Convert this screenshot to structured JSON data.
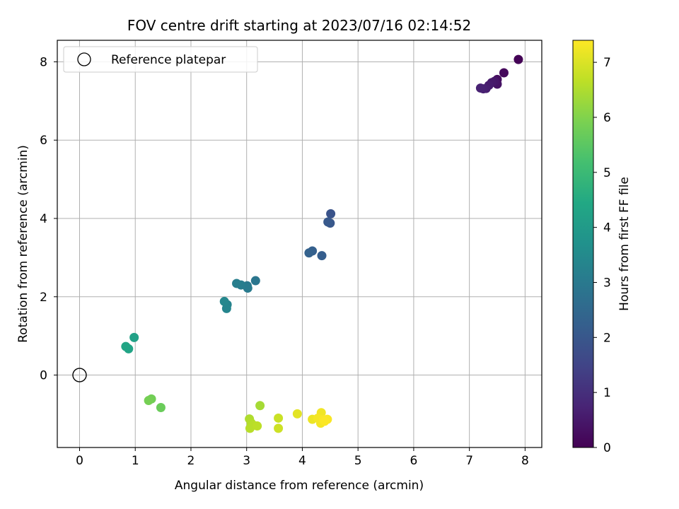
{
  "chart_data": {
    "type": "scatter",
    "title": "FOV centre drift starting at 2023/07/16 02:14:52",
    "xlabel": "Angular distance from reference (arcmin)",
    "ylabel": "Rotation from reference (arcmin)",
    "xlim": [
      -0.4,
      8.3
    ],
    "ylim": [
      -1.85,
      8.55
    ],
    "xticks": [
      0,
      1,
      2,
      3,
      4,
      5,
      6,
      7,
      8
    ],
    "yticks": [
      0,
      2,
      4,
      6,
      8
    ],
    "grid": true,
    "legend": {
      "position": "top-left",
      "entries": [
        "Reference platepar"
      ]
    },
    "reference_point": {
      "name": "Reference platepar",
      "x": 0,
      "y": 0
    },
    "colorbar": {
      "label": "Hours from first FF file",
      "range": [
        0,
        7.4
      ],
      "ticks": [
        0,
        1,
        2,
        3,
        4,
        5,
        6,
        7
      ],
      "colormap": "viridis"
    },
    "points": [
      {
        "x": 7.88,
        "y": 8.06,
        "c": 0.05
      },
      {
        "x": 7.62,
        "y": 7.72,
        "c": 0.15
      },
      {
        "x": 7.5,
        "y": 7.55,
        "c": 0.25
      },
      {
        "x": 7.5,
        "y": 7.43,
        "c": 0.35
      },
      {
        "x": 7.45,
        "y": 7.5,
        "c": 0.45
      },
      {
        "x": 7.4,
        "y": 7.47,
        "c": 0.5
      },
      {
        "x": 7.35,
        "y": 7.4,
        "c": 0.55
      },
      {
        "x": 7.3,
        "y": 7.32,
        "c": 0.6
      },
      {
        "x": 7.25,
        "y": 7.31,
        "c": 0.65
      },
      {
        "x": 7.2,
        "y": 7.33,
        "c": 0.7
      },
      {
        "x": 4.51,
        "y": 4.12,
        "c": 1.9
      },
      {
        "x": 4.5,
        "y": 3.88,
        "c": 2.0
      },
      {
        "x": 4.46,
        "y": 3.91,
        "c": 2.05
      },
      {
        "x": 4.35,
        "y": 3.05,
        "c": 2.2
      },
      {
        "x": 4.18,
        "y": 3.17,
        "c": 2.25
      },
      {
        "x": 4.12,
        "y": 3.12,
        "c": 2.3
      },
      {
        "x": 3.16,
        "y": 2.41,
        "c": 2.9
      },
      {
        "x": 3.01,
        "y": 2.28,
        "c": 3.0
      },
      {
        "x": 3.02,
        "y": 2.22,
        "c": 3.05
      },
      {
        "x": 2.9,
        "y": 2.3,
        "c": 3.1
      },
      {
        "x": 2.82,
        "y": 2.34,
        "c": 3.15
      },
      {
        "x": 2.65,
        "y": 1.8,
        "c": 3.3
      },
      {
        "x": 2.64,
        "y": 1.7,
        "c": 3.35
      },
      {
        "x": 2.6,
        "y": 1.88,
        "c": 3.4
      },
      {
        "x": 0.98,
        "y": 0.96,
        "c": 4.2
      },
      {
        "x": 0.88,
        "y": 0.67,
        "c": 4.3
      },
      {
        "x": 0.83,
        "y": 0.73,
        "c": 4.35
      },
      {
        "x": 1.46,
        "y": -0.83,
        "c": 5.7
      },
      {
        "x": 1.29,
        "y": -0.61,
        "c": 5.8
      },
      {
        "x": 1.24,
        "y": -0.65,
        "c": 5.85
      },
      {
        "x": 3.24,
        "y": -0.78,
        "c": 6.4
      },
      {
        "x": 3.05,
        "y": -1.12,
        "c": 6.5
      },
      {
        "x": 3.08,
        "y": -1.22,
        "c": 6.55
      },
      {
        "x": 3.12,
        "y": -1.28,
        "c": 6.6
      },
      {
        "x": 3.06,
        "y": -1.36,
        "c": 6.6
      },
      {
        "x": 3.19,
        "y": -1.3,
        "c": 6.65
      },
      {
        "x": 3.57,
        "y": -1.1,
        "c": 6.8
      },
      {
        "x": 3.57,
        "y": -1.36,
        "c": 6.85
      },
      {
        "x": 3.91,
        "y": -0.99,
        "c": 7.1
      },
      {
        "x": 4.34,
        "y": -0.96,
        "c": 7.25
      },
      {
        "x": 4.18,
        "y": -1.13,
        "c": 7.2
      },
      {
        "x": 4.28,
        "y": -1.1,
        "c": 7.3
      },
      {
        "x": 4.33,
        "y": -1.23,
        "c": 7.3
      },
      {
        "x": 4.38,
        "y": -1.14,
        "c": 7.35
      },
      {
        "x": 4.45,
        "y": -1.13,
        "c": 7.35
      },
      {
        "x": 4.4,
        "y": -1.18,
        "c": 7.38
      }
    ]
  }
}
